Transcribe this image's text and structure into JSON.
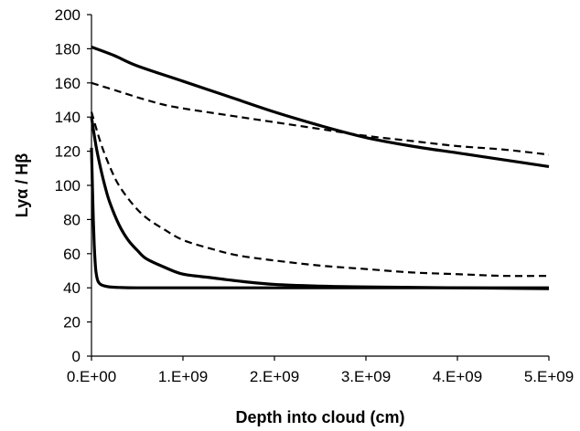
{
  "chart_data": {
    "type": "line",
    "title": "",
    "xlabel": "Depth into cloud (cm)",
    "ylabel": "Lyα / Hβ",
    "xlim": [
      0,
      5000000000
    ],
    "ylim": [
      0,
      200
    ],
    "x_ticks": [
      0,
      1000000000,
      2000000000,
      3000000000,
      4000000000,
      5000000000
    ],
    "x_tick_labels": [
      "0.E+00",
      "1.E+09",
      "2.E+09",
      "3.E+09",
      "4.E+09",
      "5.E+09"
    ],
    "y_ticks": [
      0,
      20,
      40,
      60,
      80,
      100,
      120,
      140,
      160,
      180,
      200
    ],
    "y_tick_labels": [
      "0",
      "20",
      "40",
      "60",
      "80",
      "100",
      "120",
      "140",
      "160",
      "180",
      "200"
    ],
    "grid": false,
    "legend": false,
    "series": [
      {
        "style": "solid",
        "color": "#000000",
        "points": [
          [
            0,
            181
          ],
          [
            250000000,
            176
          ],
          [
            500000000,
            170
          ],
          [
            1000000000,
            161
          ],
          [
            1500000000,
            152
          ],
          [
            2000000000,
            143
          ],
          [
            2500000000,
            135
          ],
          [
            3000000000,
            128
          ],
          [
            3500000000,
            123
          ],
          [
            4000000000,
            119
          ],
          [
            4500000000,
            115
          ],
          [
            5000000000,
            111
          ]
        ]
      },
      {
        "style": "dashed",
        "color": "#000000",
        "points": [
          [
            0,
            160
          ],
          [
            300000000,
            155
          ],
          [
            600000000,
            150
          ],
          [
            900000000,
            146
          ],
          [
            1500000000,
            141
          ],
          [
            2000000000,
            137
          ],
          [
            2500000000,
            133
          ],
          [
            3000000000,
            129
          ],
          [
            3500000000,
            126
          ],
          [
            4000000000,
            123
          ],
          [
            4500000000,
            121
          ],
          [
            5000000000,
            118
          ]
        ]
      },
      {
        "style": "dashed",
        "color": "#000000",
        "points": [
          [
            0,
            143
          ],
          [
            100000000,
            125
          ],
          [
            200000000,
            111
          ],
          [
            300000000,
            100
          ],
          [
            450000000,
            89
          ],
          [
            600000000,
            81
          ],
          [
            800000000,
            74
          ],
          [
            1000000000,
            68
          ],
          [
            1300000000,
            63
          ],
          [
            1600000000,
            59
          ],
          [
            2000000000,
            56
          ],
          [
            2500000000,
            53
          ],
          [
            3000000000,
            51
          ],
          [
            3500000000,
            49
          ],
          [
            4000000000,
            48
          ],
          [
            4500000000,
            47
          ],
          [
            5000000000,
            47
          ]
        ]
      },
      {
        "style": "solid",
        "color": "#000000",
        "points": [
          [
            0,
            140
          ],
          [
            50000000,
            123
          ],
          [
            100000000,
            110
          ],
          [
            150000000,
            99
          ],
          [
            200000000,
            90
          ],
          [
            300000000,
            77
          ],
          [
            400000000,
            68
          ],
          [
            500000000,
            62
          ],
          [
            600000000,
            57
          ],
          [
            800000000,
            52
          ],
          [
            1000000000,
            48
          ],
          [
            1300000000,
            46
          ],
          [
            1600000000,
            44
          ],
          [
            2000000000,
            42
          ],
          [
            2500000000,
            41
          ],
          [
            3000000000,
            40.5
          ],
          [
            4000000000,
            40
          ],
          [
            5000000000,
            39.5
          ]
        ]
      },
      {
        "style": "solid",
        "color": "#000000",
        "points": [
          [
            0,
            122
          ],
          [
            10000000,
            100
          ],
          [
            20000000,
            80
          ],
          [
            30000000,
            65
          ],
          [
            40000000,
            55
          ],
          [
            50000000,
            49
          ],
          [
            70000000,
            44
          ],
          [
            100000000,
            42
          ],
          [
            150000000,
            41
          ],
          [
            200000000,
            40.5
          ],
          [
            300000000,
            40.2
          ],
          [
            500000000,
            40
          ],
          [
            1000000000,
            40
          ],
          [
            2000000000,
            40
          ],
          [
            3000000000,
            40
          ],
          [
            4000000000,
            40
          ],
          [
            5000000000,
            40
          ]
        ]
      }
    ]
  }
}
